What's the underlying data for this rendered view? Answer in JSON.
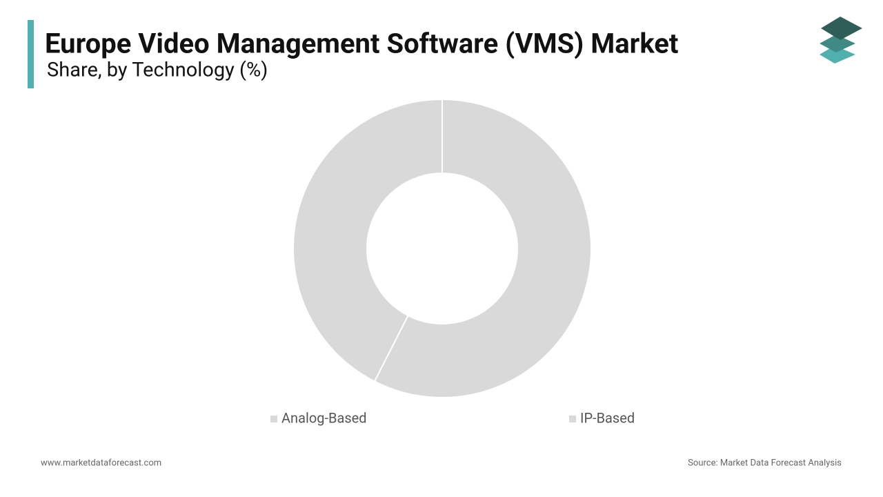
{
  "chart_data": {
    "type": "donut",
    "title": "Europe Video Management Software (VMS) Market",
    "subtitle": "Share, by Technology (%)",
    "categories": [
      "Analog-Based",
      "IP-Based"
    ],
    "values": [
      57.5,
      42.5
    ],
    "colors": [
      "#d9d9d9",
      "#d9d9d9"
    ]
  },
  "footer": {
    "website": "www.marketdataforecast.com",
    "source": "Source: Market Data Forecast Analysis"
  }
}
